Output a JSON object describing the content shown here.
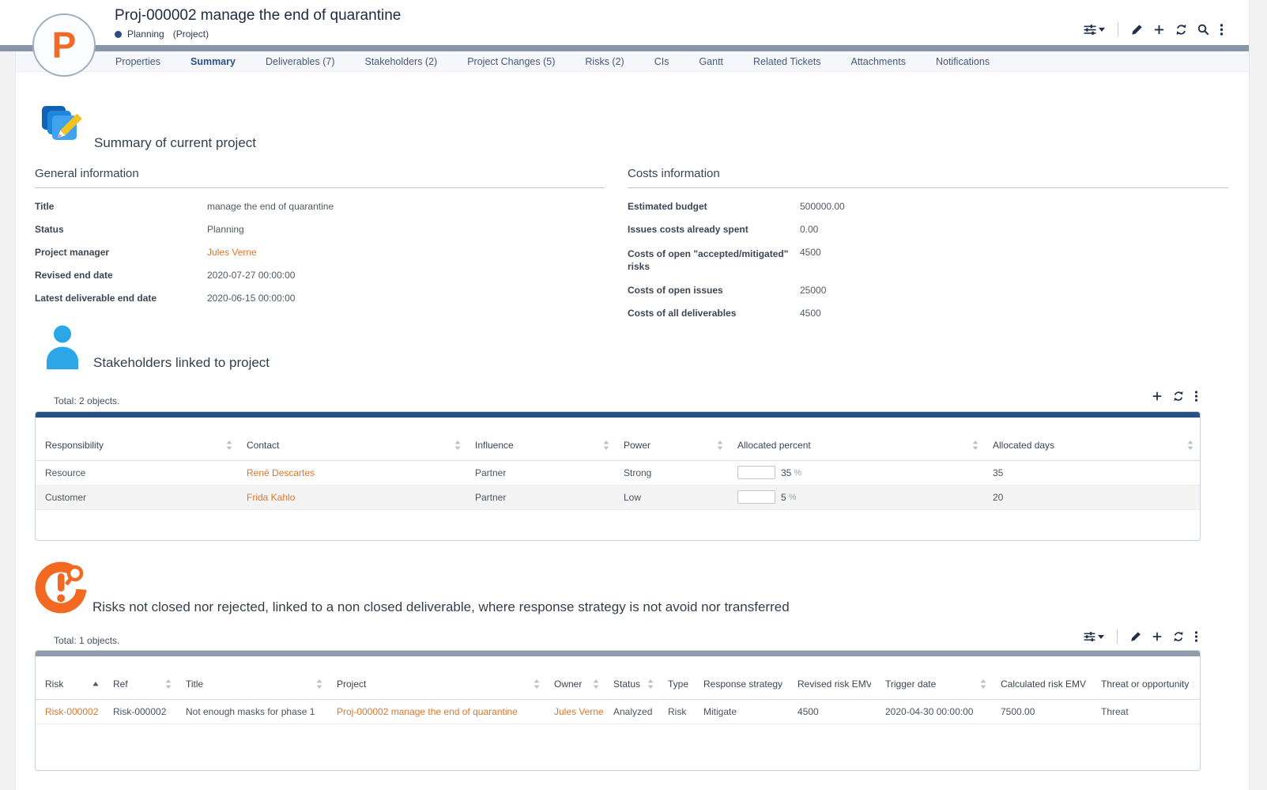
{
  "colors": {
    "brand_orange": "#f16a26",
    "link_orange": "#d9772f",
    "top_bar": "#8796ab",
    "status_dot": "#2d4d7e",
    "accent_navy": "#2a5183",
    "accent_gray": "#8d9bab",
    "progress_green": "#33cc11"
  },
  "header": {
    "logo_letter": "P",
    "title": "Proj-000002 manage the end of quarantine",
    "status_label": "Planning",
    "status_class": "(Project)",
    "toolbar_icons": [
      "filter-dropdown",
      "edit-pencil",
      "add-plus",
      "refresh",
      "search-magnifier",
      "more-kebab"
    ]
  },
  "tabs": [
    {
      "label": "Properties",
      "active": false
    },
    {
      "label": "Summary",
      "active": true
    },
    {
      "label": "Deliverables (7)",
      "active": false
    },
    {
      "label": "Stakeholders (2)",
      "active": false
    },
    {
      "label": "Project Changes (5)",
      "active": false
    },
    {
      "label": "Risks (2)",
      "active": false
    },
    {
      "label": "CIs",
      "active": false
    },
    {
      "label": "Gantt",
      "active": false
    },
    {
      "label": "Related Tickets",
      "active": false
    },
    {
      "label": "Attachments",
      "active": false
    },
    {
      "label": "Notifications",
      "active": false
    }
  ],
  "summary_section": {
    "heading": "Summary of current project",
    "icon": "stacked-projects-with-pencil",
    "general": {
      "heading": "General information",
      "fields": [
        {
          "label": "Title",
          "value": "manage the end of quarantine"
        },
        {
          "label": "Status",
          "value": "Planning"
        },
        {
          "label": "Project manager",
          "value": "Jules Verne",
          "is_link": true
        },
        {
          "label": "Revised end date",
          "value": "2020-07-27 00:00:00"
        },
        {
          "label": "Latest deliverable end date",
          "value": "2020-06-15 00:00:00"
        }
      ]
    },
    "costs": {
      "heading": "Costs information",
      "fields": [
        {
          "label": "Estimated budget",
          "value": "500000.00"
        },
        {
          "label": "Issues costs already spent",
          "value": "0.00"
        },
        {
          "label": "Costs of open \"accepted/mitigated\" risks",
          "value": "4500"
        },
        {
          "label": "Costs of open issues",
          "value": "25000"
        },
        {
          "label": "Costs of all deliverables",
          "value": "4500"
        }
      ]
    }
  },
  "stakeholders_section": {
    "heading": "Stakeholders linked to project",
    "icon": "person-silhouette",
    "total": "Total: 2 objects.",
    "toolbar_icons": [
      "add-plus",
      "refresh",
      "more-kebab"
    ],
    "table": {
      "columns": [
        {
          "label": "Responsibility",
          "sort": "both"
        },
        {
          "label": "Contact",
          "sort": "both"
        },
        {
          "label": "Influence",
          "sort": "both"
        },
        {
          "label": "Power",
          "sort": "both"
        },
        {
          "label": "Allocated percent",
          "sort": "both"
        },
        {
          "label": "Allocated days",
          "sort": "both"
        }
      ],
      "rows": [
        {
          "responsibility": "Resource",
          "contact": "René Descartes",
          "influence": "Partner",
          "power": "Strong",
          "allocated_percent": 35,
          "percent_value": "35",
          "percent_unit": "%",
          "allocated_days": "35"
        },
        {
          "responsibility": "Customer",
          "contact": "Frida Kahlo",
          "influence": "Partner",
          "power": "Low",
          "allocated_percent": 5,
          "percent_value": "5",
          "percent_unit": "%",
          "allocated_days": "20"
        }
      ]
    }
  },
  "risks_section": {
    "heading": "Risks not closed nor rejected, linked to a non closed deliverable, where response strategy is not avoid nor transferred",
    "icon": "risk-alert-magnifier",
    "total": "Total: 1 objects.",
    "toolbar_icons": [
      "filter-dropdown",
      "edit-pencil",
      "add-plus",
      "refresh",
      "more-kebab"
    ],
    "table": {
      "columns": [
        {
          "label": "Risk",
          "sort": "asc"
        },
        {
          "label": "Ref",
          "sort": "both"
        },
        {
          "label": "Title",
          "sort": "both"
        },
        {
          "label": "Project",
          "sort": "both"
        },
        {
          "label": "Owner",
          "sort": "both"
        },
        {
          "label": "Status",
          "sort": "both"
        },
        {
          "label": "Type",
          "sort": "both"
        },
        {
          "label": "Response strategy",
          "sort": "both"
        },
        {
          "label": "Revised risk EMV",
          "sort": "both"
        },
        {
          "label": "Trigger date",
          "sort": "both"
        },
        {
          "label": "Calculated risk EMV",
          "sort": "both"
        },
        {
          "label": "Threat or opportunity",
          "sort": "both"
        }
      ],
      "rows": [
        {
          "risk": "Risk-000002",
          "ref": "Risk-000002",
          "title": "Not enough masks for phase 1",
          "project": "Proj-000002 manage the end of quarantine",
          "owner": "Jules Verne",
          "status": "Analyzed",
          "type": "Risk",
          "response_strategy": "Mitigate",
          "revised_risk_emv": "4500",
          "trigger_date": "2020-04-30 00:00:00",
          "calculated_risk_emv": "7500.00",
          "threat_or_opportunity": "Threat"
        }
      ]
    }
  }
}
